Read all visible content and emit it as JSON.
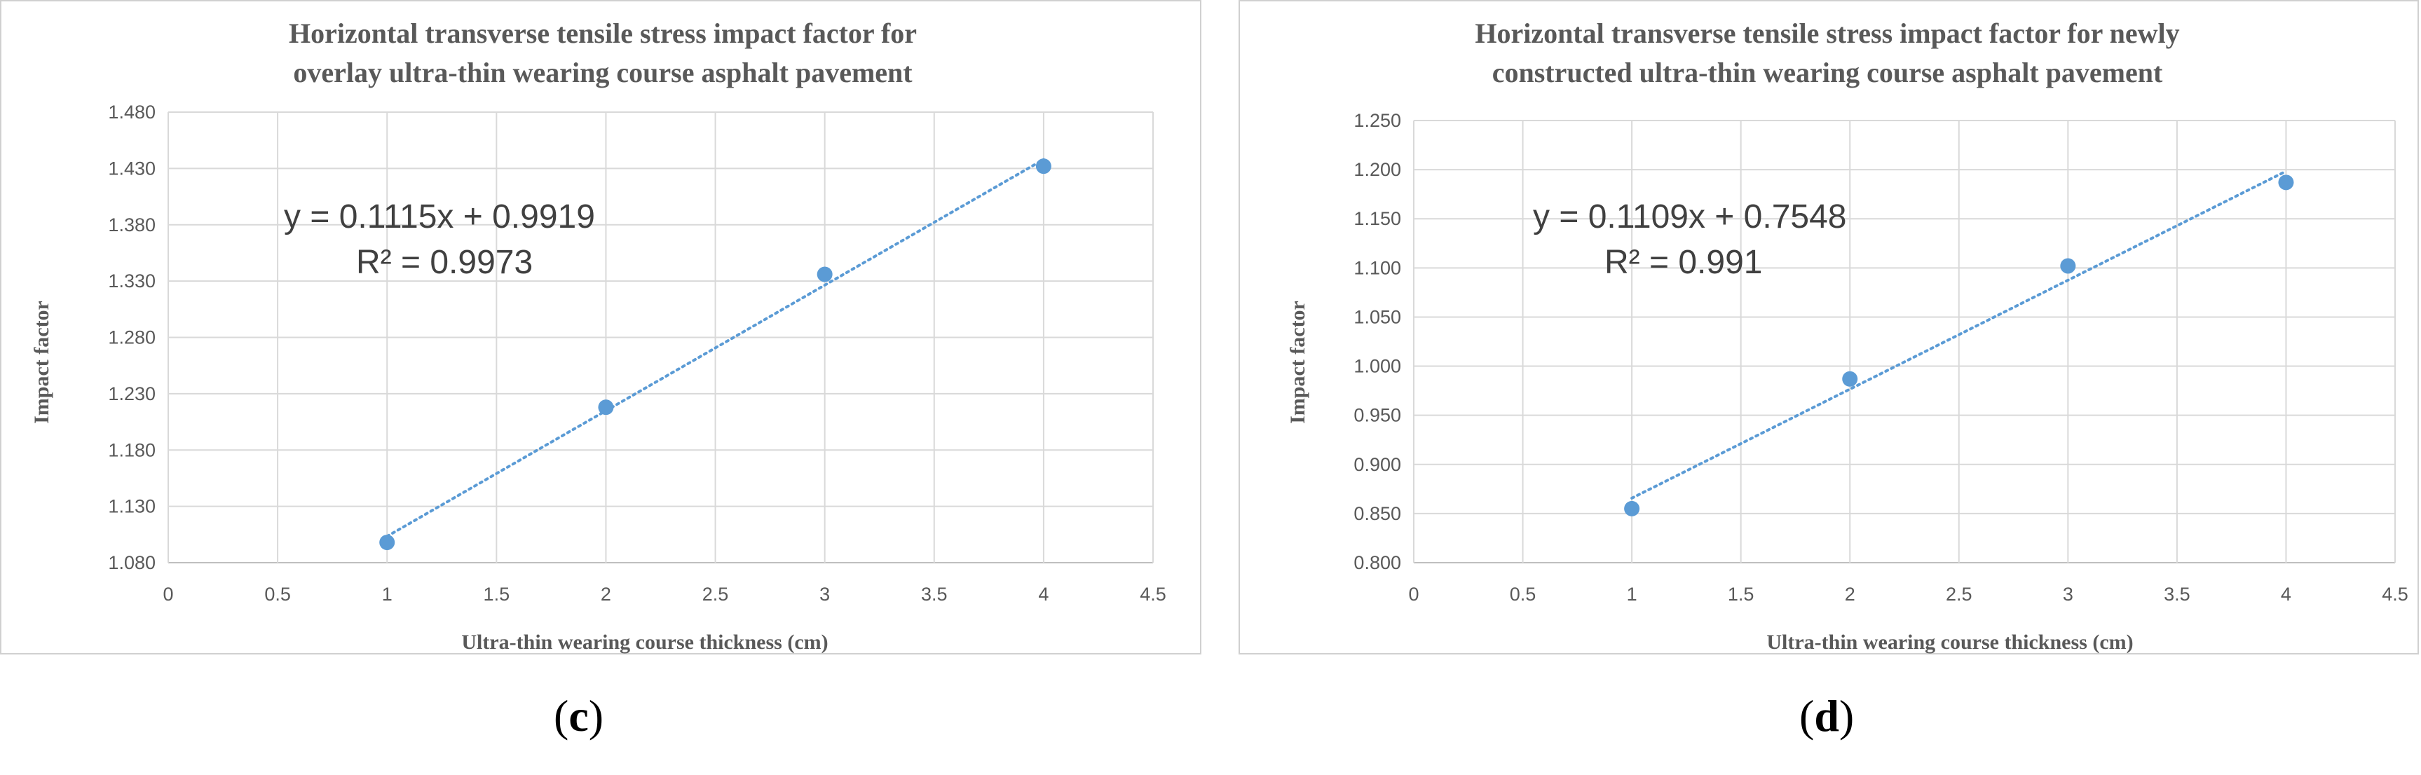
{
  "chart_data": [
    {
      "type": "scatter",
      "title": "Horizontal transverse tensile stress impact factor for overlay ultra-thin wearing course asphalt pavement",
      "title_lines": [
        "Horizontal transverse tensile stress impact factor for",
        "overlay ultra-thin wearing course asphalt pavement"
      ],
      "xlabel": "Ultra-thin wearing course thickness (cm)",
      "ylabel": "Impact factor",
      "xlim": [
        0,
        4.5
      ],
      "ylim": [
        1.08,
        1.48
      ],
      "xticks": [
        "0",
        "0.5",
        "1",
        "1.5",
        "2",
        "2.5",
        "3",
        "3.5",
        "4",
        "4.5"
      ],
      "yticks": [
        "1.080",
        "1.130",
        "1.180",
        "1.230",
        "1.280",
        "1.330",
        "1.380",
        "1.430",
        "1.480"
      ],
      "series": [
        {
          "x": [
            1,
            2,
            3,
            4
          ],
          "y": [
            1.098,
            1.218,
            1.336,
            1.432
          ]
        }
      ],
      "trendline": {
        "type": "linear",
        "slope": 0.1115,
        "intercept": 0.9919,
        "equation": "y = 0.1115x + 0.9919",
        "r2": "R² = 0.9973"
      },
      "grid": true,
      "marker_color": "#5b9bd5",
      "panel_label": "c"
    },
    {
      "type": "scatter",
      "title": "Horizontal transverse tensile stress impact factor for newly constructed ultra-thin wearing course asphalt pavement",
      "title_lines": [
        "Horizontal transverse tensile stress impact factor for newly",
        "constructed ultra-thin wearing course asphalt pavement"
      ],
      "xlabel": "Ultra-thin wearing course thickness (cm)",
      "ylabel": "Impact factor",
      "xlim": [
        0,
        4.5
      ],
      "ylim": [
        0.8,
        1.25
      ],
      "xticks": [
        "0",
        "0.5",
        "1",
        "1.5",
        "2",
        "2.5",
        "3",
        "3.5",
        "4",
        "4.5"
      ],
      "yticks": [
        "0.800",
        "0.850",
        "0.900",
        "0.950",
        "1.000",
        "1.050",
        "1.100",
        "1.150",
        "1.200",
        "1.250"
      ],
      "series": [
        {
          "x": [
            1,
            2,
            3,
            4
          ],
          "y": [
            0.855,
            0.987,
            1.102,
            1.187
          ]
        }
      ],
      "trendline": {
        "type": "linear",
        "slope": 0.1109,
        "intercept": 0.7548,
        "equation": "y = 0.1109x + 0.7548",
        "r2": "R² = 0.991"
      },
      "grid": true,
      "marker_color": "#5b9bd5",
      "panel_label": "d"
    }
  ]
}
